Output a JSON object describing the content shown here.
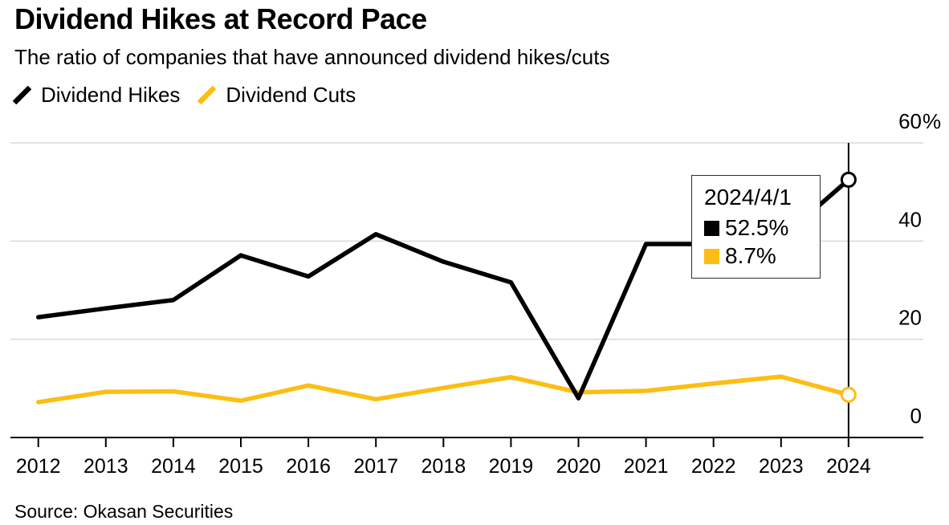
{
  "header": {
    "title": "Dividend Hikes at Record Pace",
    "subtitle": "The ratio of companies that have announced dividend hikes/cuts"
  },
  "legend": {
    "items": [
      {
        "label": "Dividend Hikes",
        "color": "#000000"
      },
      {
        "label": "Dividend Cuts",
        "color": "#fcbe14"
      }
    ]
  },
  "chart_data": {
    "type": "line",
    "x": [
      2012,
      2013,
      2014,
      2015,
      2016,
      2017,
      2018,
      2019,
      2020,
      2021,
      2022,
      2023,
      2024
    ],
    "series": [
      {
        "name": "Dividend Hikes",
        "color": "#000000",
        "values": [
          24.5,
          26.3,
          28.0,
          37.1,
          32.8,
          41.4,
          35.8,
          31.6,
          8.0,
          39.4,
          39.4,
          40.5,
          52.5
        ]
      },
      {
        "name": "Dividend Cuts",
        "color": "#fcbe14",
        "values": [
          7.2,
          9.3,
          9.4,
          7.5,
          10.6,
          7.8,
          10.1,
          12.3,
          9.2,
          9.5,
          11.0,
          12.4,
          8.7
        ]
      }
    ],
    "ylim": [
      0,
      60
    ],
    "yticks": [
      {
        "value": 60,
        "label": "60%"
      },
      {
        "value": 40,
        "label": "40"
      },
      {
        "value": 20,
        "label": "20"
      },
      {
        "value": 0,
        "label": "0"
      }
    ],
    "grid": "horizontal",
    "legend_position": "top-left",
    "y_axis_side": "right",
    "highlight": {
      "x": 2024,
      "date": "2024/4/1",
      "values": [
        52.5,
        8.7
      ]
    }
  },
  "tooltip": {
    "date": "2024/4/1",
    "rows": [
      {
        "series": "Dividend Hikes",
        "value": "52.5%",
        "color": "#000000"
      },
      {
        "series": "Dividend Cuts",
        "value": "8.7%",
        "color": "#fcbe14"
      }
    ]
  },
  "source": "Source: Okasan Securities"
}
